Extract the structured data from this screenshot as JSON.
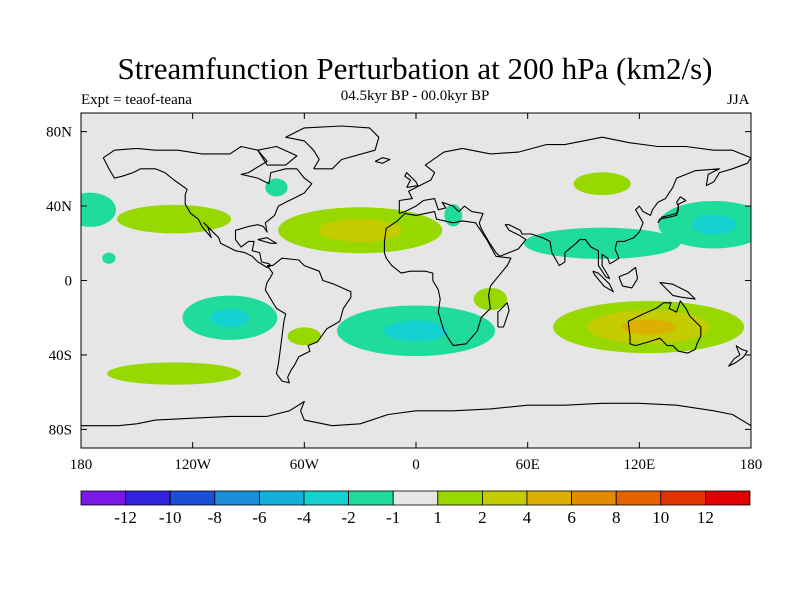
{
  "title": "Streamfunction Perturbation at 200 hPa (km2/s)",
  "left_label": "Expt = teaof-teana",
  "center_label": "04.5kyr BP - 00.0kyr BP",
  "right_label": "JJA",
  "map": {
    "projection": "cylindrical equidistant",
    "lon_range": [
      -180,
      180
    ],
    "lat_range": [
      -90,
      90
    ],
    "lon_ticks": [
      {
        "value": -180,
        "label": "180"
      },
      {
        "value": -120,
        "label": "120W"
      },
      {
        "value": -60,
        "label": "60W"
      },
      {
        "value": 0,
        "label": "0"
      },
      {
        "value": 60,
        "label": "60E"
      },
      {
        "value": 120,
        "label": "120E"
      },
      {
        "value": 180,
        "label": "180"
      }
    ],
    "lat_ticks": [
      {
        "value": 80,
        "label": "80N"
      },
      {
        "value": 40,
        "label": "40N"
      },
      {
        "value": 0,
        "label": "0"
      },
      {
        "value": -40,
        "label": "40S"
      },
      {
        "value": -80,
        "label": "80S"
      }
    ],
    "background_color": "#e6e6e6",
    "coast_color": "#000000"
  },
  "colorbar": {
    "colors": [
      "#7b18e6",
      "#3222de",
      "#1a50d8",
      "#1a8ed8",
      "#14b0da",
      "#14d2d0",
      "#20dc9a",
      "#e6e6e6",
      "#96d800",
      "#c4cc00",
      "#dcb000",
      "#e28a00",
      "#e46200",
      "#e23400",
      "#e00000"
    ],
    "labels": [
      "-12",
      "-10",
      "-8",
      "-6",
      "-4",
      "-2",
      "-1",
      "1",
      "2",
      "4",
      "6",
      "8",
      "10",
      "12"
    ]
  },
  "anomaly_levels": [
    {
      "value": -2,
      "color": "#20dc9a"
    },
    {
      "value": -4,
      "color": "#14d2d0"
    },
    {
      "value": 2,
      "color": "#96d800"
    },
    {
      "value": 4,
      "color": "#c4cc00"
    },
    {
      "value": 6,
      "color": "#dcb000"
    }
  ],
  "anomalies": [
    {
      "name": "north-pacific-west-negative",
      "lon": -175,
      "lat": 38,
      "rlon": 18,
      "rlat": 12,
      "peak": -3
    },
    {
      "name": "us-eastcoast-negative",
      "lon": -75,
      "lat": 50,
      "rlon": 10,
      "rlat": 8,
      "peak": -2
    },
    {
      "name": "north-pacific-positive",
      "lon": -130,
      "lat": 33,
      "rlon": 40,
      "rlat": 10,
      "peak": 3
    },
    {
      "name": "north-atlantic-positive",
      "lon": -30,
      "lat": 27,
      "rlon": 50,
      "rlat": 14,
      "peak": 4.6
    },
    {
      "name": "west-africa-negative",
      "lon": 20,
      "lat": 35,
      "rlon": 8,
      "rlat": 10,
      "peak": -2
    },
    {
      "name": "central-asia-positive",
      "lon": 100,
      "lat": 52,
      "rlon": 20,
      "rlat": 8,
      "peak": 3
    },
    {
      "name": "asia-negative",
      "lon": 100,
      "lat": 20,
      "rlon": 70,
      "rlat": 14,
      "peak": -2
    },
    {
      "name": "west-pacific-negative",
      "lon": 160,
      "lat": 30,
      "rlon": 35,
      "rlat": 15,
      "peak": -4
    },
    {
      "name": "east-pacific-negative-small",
      "lon": -165,
      "lat": 12,
      "rlon": 6,
      "rlat": 5,
      "peak": -2
    },
    {
      "name": "south-pacific-negative",
      "lon": -100,
      "lat": -20,
      "rlon": 30,
      "rlat": 14,
      "peak": -4
    },
    {
      "name": "south-atlantic-negative",
      "lon": 0,
      "lat": -27,
      "rlon": 50,
      "rlat": 16,
      "peak": -4
    },
    {
      "name": "southern-ocean-positive",
      "lon": -130,
      "lat": -50,
      "rlon": 60,
      "rlat": 10,
      "peak": 2
    },
    {
      "name": "south-america-positive",
      "lon": -60,
      "lat": -30,
      "rlon": 15,
      "rlat": 8,
      "peak": 2
    },
    {
      "name": "australia-positive",
      "lon": 125,
      "lat": -25,
      "rlon": 55,
      "rlat": 15,
      "peak": 6
    },
    {
      "name": "south-africa-positive",
      "lon": 40,
      "lat": -10,
      "rlon": 15,
      "rlat": 10,
      "peak": 2
    }
  ]
}
